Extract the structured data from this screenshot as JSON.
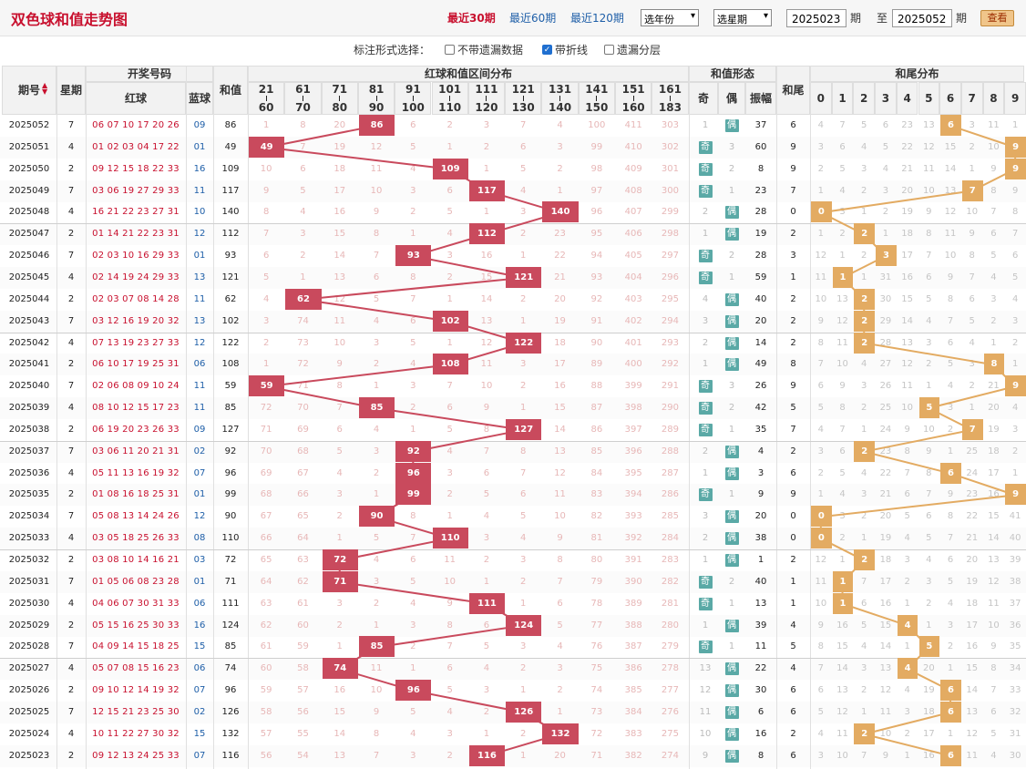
{
  "header": {
    "title": "双色球和值走势图",
    "ranges": [
      "最近30期",
      "最近60期",
      "最近120期"
    ],
    "active_range": 0,
    "year_select": "选年份",
    "week_select": "选星期",
    "from_label": "期",
    "to_prefix": "至",
    "to_label": "期",
    "from_value": "2025023",
    "to_value": "2025052",
    "query_button": "查看"
  },
  "options": {
    "label": "标注形式选择：",
    "items": [
      {
        "label": "不带遗漏数据",
        "checked": false
      },
      {
        "label": "带折线",
        "checked": true
      },
      {
        "label": "遗漏分层",
        "checked": false
      }
    ]
  },
  "columns": {
    "issue": "期号",
    "week": "星期",
    "draw": "开奖号码",
    "red": "红球",
    "blue": "蓝球",
    "sum": "和值",
    "zone_title": "红球和值区间分布",
    "zones": [
      [
        "21",
        "60"
      ],
      [
        "61",
        "70"
      ],
      [
        "71",
        "80"
      ],
      [
        "81",
        "90"
      ],
      [
        "91",
        "100"
      ],
      [
        "101",
        "110"
      ],
      [
        "111",
        "120"
      ],
      [
        "121",
        "130"
      ],
      [
        "131",
        "140"
      ],
      [
        "141",
        "150"
      ],
      [
        "151",
        "160"
      ],
      [
        "161",
        "183"
      ]
    ],
    "form_title": "和值形态",
    "odd": "奇",
    "even": "偶",
    "amp": "振幅",
    "tail": "和尾",
    "tail_title": "和尾分布",
    "tails": [
      "0",
      "1",
      "2",
      "3",
      "4",
      "5",
      "6",
      "7",
      "8",
      "9"
    ]
  },
  "colors": {
    "hit": "#c94a5d",
    "tail_hit": "#e3ab62",
    "line_red": "#c94a5d",
    "line_gold": "#e3ab62",
    "tag": "#5aa9a6"
  },
  "rows": [
    {
      "issue": "2025052",
      "week": "7",
      "red": "06 07 10 17 20 26",
      "blue": "09",
      "sum": "86",
      "zone": 3,
      "z": [
        "1",
        "8",
        "20",
        "86",
        "6",
        "2",
        "3",
        "7",
        "4",
        "100",
        "411",
        "303"
      ],
      "odd": "1",
      "even": "偶",
      "ev": true,
      "amp": "37",
      "tail": "6",
      "t": [
        "4",
        "7",
        "5",
        "6",
        "23",
        "13",
        "6",
        "3",
        "11",
        "1"
      ]
    },
    {
      "issue": "2025051",
      "week": "4",
      "red": "01 02 03 04 17 22",
      "blue": "01",
      "sum": "49",
      "zone": 0,
      "z": [
        "49",
        "7",
        "19",
        "12",
        "5",
        "1",
        "2",
        "6",
        "3",
        "99",
        "410",
        "302"
      ],
      "odd": "奇",
      "even": "3",
      "ev": false,
      "amp": "60",
      "tail": "9",
      "t": [
        "3",
        "6",
        "4",
        "5",
        "22",
        "12",
        "15",
        "2",
        "10",
        "9"
      ]
    },
    {
      "issue": "2025050",
      "week": "2",
      "red": "09 12 15 18 22 33",
      "blue": "16",
      "sum": "109",
      "zone": 5,
      "z": [
        "10",
        "6",
        "18",
        "11",
        "4",
        "109",
        "1",
        "5",
        "2",
        "98",
        "409",
        "301"
      ],
      "odd": "奇",
      "even": "2",
      "ev": false,
      "amp": "8",
      "tail": "9",
      "t": [
        "2",
        "5",
        "3",
        "4",
        "21",
        "11",
        "14",
        "1",
        "9",
        "9"
      ]
    },
    {
      "issue": "2025049",
      "week": "7",
      "red": "03 06 19 27 29 33",
      "blue": "11",
      "sum": "117",
      "zone": 6,
      "z": [
        "9",
        "5",
        "17",
        "10",
        "3",
        "6",
        "117",
        "4",
        "1",
        "97",
        "408",
        "300"
      ],
      "odd": "奇",
      "even": "1",
      "ev": false,
      "amp": "23",
      "tail": "7",
      "t": [
        "1",
        "4",
        "2",
        "3",
        "20",
        "10",
        "13",
        "7",
        "8",
        "9"
      ]
    },
    {
      "issue": "2025048",
      "week": "4",
      "red": "16 21 22 23 27 31",
      "blue": "10",
      "sum": "140",
      "zone": 8,
      "z": [
        "8",
        "4",
        "16",
        "9",
        "2",
        "5",
        "1",
        "3",
        "140",
        "96",
        "407",
        "299"
      ],
      "odd": "2",
      "even": "偶",
      "ev": true,
      "amp": "28",
      "tail": "0",
      "t": [
        "0",
        "3",
        "1",
        "2",
        "19",
        "9",
        "12",
        "10",
        "7",
        "8"
      ]
    },
    {
      "issue": "2025047",
      "week": "2",
      "red": "01 14 21 22 23 31",
      "blue": "12",
      "sum": "112",
      "zone": 6,
      "z": [
        "7",
        "3",
        "15",
        "8",
        "1",
        "4",
        "112",
        "2",
        "23",
        "95",
        "406",
        "298"
      ],
      "odd": "1",
      "even": "偶",
      "ev": true,
      "amp": "19",
      "tail": "2",
      "t": [
        "1",
        "2",
        "2",
        "1",
        "18",
        "8",
        "11",
        "9",
        "6",
        "7"
      ]
    },
    {
      "issue": "2025046",
      "week": "7",
      "red": "02 03 10 16 29 33",
      "blue": "01",
      "sum": "93",
      "zone": 4,
      "z": [
        "6",
        "2",
        "14",
        "7",
        "93",
        "3",
        "16",
        "1",
        "22",
        "94",
        "405",
        "297"
      ],
      "odd": "奇",
      "even": "2",
      "ev": false,
      "amp": "28",
      "tail": "3",
      "t": [
        "12",
        "1",
        "2",
        "3",
        "17",
        "7",
        "10",
        "8",
        "5",
        "6"
      ]
    },
    {
      "issue": "2025045",
      "week": "4",
      "red": "02 14 19 24 29 33",
      "blue": "13",
      "sum": "121",
      "zone": 7,
      "z": [
        "5",
        "1",
        "13",
        "6",
        "8",
        "2",
        "15",
        "121",
        "21",
        "93",
        "404",
        "296"
      ],
      "odd": "奇",
      "even": "1",
      "ev": false,
      "amp": "59",
      "tail": "1",
      "t": [
        "11",
        "1",
        "1",
        "31",
        "16",
        "6",
        "9",
        "7",
        "4",
        "5"
      ]
    },
    {
      "issue": "2025044",
      "week": "2",
      "red": "02 03 07 08 14 28",
      "blue": "11",
      "sum": "62",
      "zone": 1,
      "z": [
        "4",
        "62",
        "12",
        "5",
        "7",
        "1",
        "14",
        "2",
        "20",
        "92",
        "403",
        "295"
      ],
      "odd": "4",
      "even": "偶",
      "ev": true,
      "amp": "40",
      "tail": "2",
      "t": [
        "10",
        "13",
        "2",
        "30",
        "15",
        "5",
        "8",
        "6",
        "3",
        "4"
      ]
    },
    {
      "issue": "2025043",
      "week": "7",
      "red": "03 12 16 19 20 32",
      "blue": "13",
      "sum": "102",
      "zone": 5,
      "z": [
        "3",
        "74",
        "11",
        "4",
        "6",
        "102",
        "13",
        "1",
        "19",
        "91",
        "402",
        "294"
      ],
      "odd": "3",
      "even": "偶",
      "ev": true,
      "amp": "20",
      "tail": "2",
      "t": [
        "9",
        "12",
        "2",
        "29",
        "14",
        "4",
        "7",
        "5",
        "2",
        "3"
      ]
    },
    {
      "issue": "2025042",
      "week": "4",
      "red": "07 13 19 23 27 33",
      "blue": "12",
      "sum": "122",
      "zone": 7,
      "z": [
        "2",
        "73",
        "10",
        "3",
        "5",
        "1",
        "12",
        "122",
        "18",
        "90",
        "401",
        "293"
      ],
      "odd": "2",
      "even": "偶",
      "ev": true,
      "amp": "14",
      "tail": "2",
      "t": [
        "8",
        "11",
        "2",
        "28",
        "13",
        "3",
        "6",
        "4",
        "1",
        "2"
      ]
    },
    {
      "issue": "2025041",
      "week": "2",
      "red": "06 10 17 19 25 31",
      "blue": "06",
      "sum": "108",
      "zone": 5,
      "z": [
        "1",
        "72",
        "9",
        "2",
        "4",
        "108",
        "11",
        "3",
        "17",
        "89",
        "400",
        "292"
      ],
      "odd": "1",
      "even": "偶",
      "ev": true,
      "amp": "49",
      "tail": "8",
      "t": [
        "7",
        "10",
        "4",
        "27",
        "12",
        "2",
        "5",
        "3",
        "8",
        "1"
      ]
    },
    {
      "issue": "2025040",
      "week": "7",
      "red": "02 06 08 09 10 24",
      "blue": "11",
      "sum": "59",
      "zone": 0,
      "z": [
        "59",
        "71",
        "8",
        "1",
        "3",
        "7",
        "10",
        "2",
        "16",
        "88",
        "399",
        "291"
      ],
      "odd": "奇",
      "even": "3",
      "ev": false,
      "amp": "26",
      "tail": "9",
      "t": [
        "6",
        "9",
        "3",
        "26",
        "11",
        "1",
        "4",
        "2",
        "21",
        "9"
      ]
    },
    {
      "issue": "2025039",
      "week": "4",
      "red": "08 10 12 15 17 23",
      "blue": "11",
      "sum": "85",
      "zone": 3,
      "z": [
        "72",
        "70",
        "7",
        "85",
        "2",
        "6",
        "9",
        "1",
        "15",
        "87",
        "398",
        "290"
      ],
      "odd": "奇",
      "even": "2",
      "ev": false,
      "amp": "42",
      "tail": "5",
      "t": [
        "5",
        "8",
        "2",
        "25",
        "10",
        "5",
        "3",
        "1",
        "20",
        "4"
      ]
    },
    {
      "issue": "2025038",
      "week": "2",
      "red": "06 19 20 23 26 33",
      "blue": "09",
      "sum": "127",
      "zone": 7,
      "z": [
        "71",
        "69",
        "6",
        "4",
        "1",
        "5",
        "8",
        "127",
        "14",
        "86",
        "397",
        "289"
      ],
      "odd": "奇",
      "even": "1",
      "ev": false,
      "amp": "35",
      "tail": "7",
      "t": [
        "4",
        "7",
        "1",
        "24",
        "9",
        "10",
        "2",
        "7",
        "19",
        "3"
      ]
    },
    {
      "issue": "2025037",
      "week": "7",
      "red": "03 06 11 20 21 31",
      "blue": "02",
      "sum": "92",
      "zone": 4,
      "z": [
        "70",
        "68",
        "5",
        "3",
        "92",
        "4",
        "7",
        "8",
        "13",
        "85",
        "396",
        "288"
      ],
      "odd": "2",
      "even": "偶",
      "ev": true,
      "amp": "4",
      "tail": "2",
      "t": [
        "3",
        "6",
        "2",
        "23",
        "8",
        "9",
        "1",
        "25",
        "18",
        "2"
      ]
    },
    {
      "issue": "2025036",
      "week": "4",
      "red": "05 11 13 16 19 32",
      "blue": "07",
      "sum": "96",
      "zone": 4,
      "z": [
        "69",
        "67",
        "4",
        "2",
        "96",
        "3",
        "6",
        "7",
        "12",
        "84",
        "395",
        "287"
      ],
      "odd": "1",
      "even": "偶",
      "ev": true,
      "amp": "3",
      "tail": "6",
      "t": [
        "2",
        "5",
        "4",
        "22",
        "7",
        "8",
        "6",
        "24",
        "17",
        "1"
      ]
    },
    {
      "issue": "2025035",
      "week": "2",
      "red": "01 08 16 18 25 31",
      "blue": "01",
      "sum": "99",
      "zone": 4,
      "z": [
        "68",
        "66",
        "3",
        "1",
        "99",
        "2",
        "5",
        "6",
        "11",
        "83",
        "394",
        "286"
      ],
      "odd": "奇",
      "even": "1",
      "ev": false,
      "amp": "9",
      "tail": "9",
      "t": [
        "1",
        "4",
        "3",
        "21",
        "6",
        "7",
        "9",
        "23",
        "16",
        "9"
      ]
    },
    {
      "issue": "2025034",
      "week": "7",
      "red": "05 08 13 14 24 26",
      "blue": "12",
      "sum": "90",
      "zone": 3,
      "z": [
        "67",
        "65",
        "2",
        "90",
        "8",
        "1",
        "4",
        "5",
        "10",
        "82",
        "393",
        "285"
      ],
      "odd": "3",
      "even": "偶",
      "ev": true,
      "amp": "20",
      "tail": "0",
      "t": [
        "0",
        "3",
        "2",
        "20",
        "5",
        "6",
        "8",
        "22",
        "15",
        "41"
      ]
    },
    {
      "issue": "2025033",
      "week": "4",
      "red": "03 05 18 25 26 33",
      "blue": "08",
      "sum": "110",
      "zone": 5,
      "z": [
        "66",
        "64",
        "1",
        "5",
        "7",
        "110",
        "3",
        "4",
        "9",
        "81",
        "392",
        "284"
      ],
      "odd": "2",
      "even": "偶",
      "ev": true,
      "amp": "38",
      "tail": "0",
      "t": [
        "0",
        "2",
        "1",
        "19",
        "4",
        "5",
        "7",
        "21",
        "14",
        "40"
      ]
    },
    {
      "issue": "2025032",
      "week": "2",
      "red": "03 08 10 14 16 21",
      "blue": "03",
      "sum": "72",
      "zone": 2,
      "z": [
        "65",
        "63",
        "72",
        "4",
        "6",
        "11",
        "2",
        "3",
        "8",
        "80",
        "391",
        "283"
      ],
      "odd": "1",
      "even": "偶",
      "ev": true,
      "amp": "1",
      "tail": "2",
      "t": [
        "12",
        "1",
        "2",
        "18",
        "3",
        "4",
        "6",
        "20",
        "13",
        "39"
      ]
    },
    {
      "issue": "2025031",
      "week": "7",
      "red": "01 05 06 08 23 28",
      "blue": "01",
      "sum": "71",
      "zone": 2,
      "z": [
        "64",
        "62",
        "71",
        "3",
        "5",
        "10",
        "1",
        "2",
        "7",
        "79",
        "390",
        "282"
      ],
      "odd": "奇",
      "even": "2",
      "ev": false,
      "amp": "40",
      "tail": "1",
      "t": [
        "11",
        "1",
        "7",
        "17",
        "2",
        "3",
        "5",
        "19",
        "12",
        "38"
      ]
    },
    {
      "issue": "2025030",
      "week": "4",
      "red": "04 06 07 30 31 33",
      "blue": "06",
      "sum": "111",
      "zone": 6,
      "z": [
        "63",
        "61",
        "3",
        "2",
        "4",
        "9",
        "111",
        "1",
        "6",
        "78",
        "389",
        "281"
      ],
      "odd": "奇",
      "even": "1",
      "ev": false,
      "amp": "13",
      "tail": "1",
      "t": [
        "10",
        "1",
        "6",
        "16",
        "1",
        "2",
        "4",
        "18",
        "11",
        "37"
      ]
    },
    {
      "issue": "2025029",
      "week": "2",
      "red": "05 15 16 25 30 33",
      "blue": "16",
      "sum": "124",
      "zone": 7,
      "z": [
        "62",
        "60",
        "2",
        "1",
        "3",
        "8",
        "6",
        "124",
        "5",
        "77",
        "388",
        "280"
      ],
      "odd": "1",
      "even": "偶",
      "ev": true,
      "amp": "39",
      "tail": "4",
      "t": [
        "9",
        "16",
        "5",
        "15",
        "4",
        "1",
        "3",
        "17",
        "10",
        "36"
      ]
    },
    {
      "issue": "2025028",
      "week": "7",
      "red": "04 09 14 15 18 25",
      "blue": "15",
      "sum": "85",
      "zone": 3,
      "z": [
        "61",
        "59",
        "1",
        "85",
        "2",
        "7",
        "5",
        "3",
        "4",
        "76",
        "387",
        "279"
      ],
      "odd": "奇",
      "even": "1",
      "ev": false,
      "amp": "11",
      "tail": "5",
      "t": [
        "8",
        "15",
        "4",
        "14",
        "1",
        "5",
        "2",
        "16",
        "9",
        "35"
      ]
    },
    {
      "issue": "2025027",
      "week": "4",
      "red": "05 07 08 15 16 23",
      "blue": "06",
      "sum": "74",
      "zone": 2,
      "z": [
        "60",
        "58",
        "74",
        "11",
        "1",
        "6",
        "4",
        "2",
        "3",
        "75",
        "386",
        "278"
      ],
      "odd": "13",
      "even": "偶",
      "ev": true,
      "amp": "22",
      "tail": "4",
      "t": [
        "7",
        "14",
        "3",
        "13",
        "4",
        "20",
        "1",
        "15",
        "8",
        "34"
      ]
    },
    {
      "issue": "2025026",
      "week": "2",
      "red": "09 10 12 14 19 32",
      "blue": "07",
      "sum": "96",
      "zone": 4,
      "z": [
        "59",
        "57",
        "16",
        "10",
        "96",
        "5",
        "3",
        "1",
        "2",
        "74",
        "385",
        "277"
      ],
      "odd": "12",
      "even": "偶",
      "ev": true,
      "amp": "30",
      "tail": "6",
      "t": [
        "6",
        "13",
        "2",
        "12",
        "4",
        "19",
        "6",
        "14",
        "7",
        "33"
      ]
    },
    {
      "issue": "2025025",
      "week": "7",
      "red": "12 15 21 23 25 30",
      "blue": "02",
      "sum": "126",
      "zone": 7,
      "z": [
        "58",
        "56",
        "15",
        "9",
        "5",
        "4",
        "2",
        "126",
        "1",
        "73",
        "384",
        "276"
      ],
      "odd": "11",
      "even": "偶",
      "ev": true,
      "amp": "6",
      "tail": "6",
      "t": [
        "5",
        "12",
        "1",
        "11",
        "3",
        "18",
        "6",
        "13",
        "6",
        "32"
      ]
    },
    {
      "issue": "2025024",
      "week": "4",
      "red": "10 11 22 27 30 32",
      "blue": "15",
      "sum": "132",
      "zone": 8,
      "z": [
        "57",
        "55",
        "14",
        "8",
        "4",
        "3",
        "1",
        "2",
        "132",
        "72",
        "383",
        "275"
      ],
      "odd": "10",
      "even": "偶",
      "ev": true,
      "amp": "16",
      "tail": "2",
      "t": [
        "4",
        "11",
        "2",
        "10",
        "2",
        "17",
        "1",
        "12",
        "5",
        "31"
      ]
    },
    {
      "issue": "2025023",
      "week": "2",
      "red": "09 12 13 24 25 33",
      "blue": "07",
      "sum": "116",
      "zone": 6,
      "z": [
        "56",
        "54",
        "13",
        "7",
        "3",
        "2",
        "116",
        "1",
        "20",
        "71",
        "382",
        "274"
      ],
      "odd": "9",
      "even": "偶",
      "ev": true,
      "amp": "8",
      "tail": "6",
      "t": [
        "3",
        "10",
        "7",
        "9",
        "1",
        "16",
        "6",
        "11",
        "4",
        "30"
      ]
    }
  ]
}
